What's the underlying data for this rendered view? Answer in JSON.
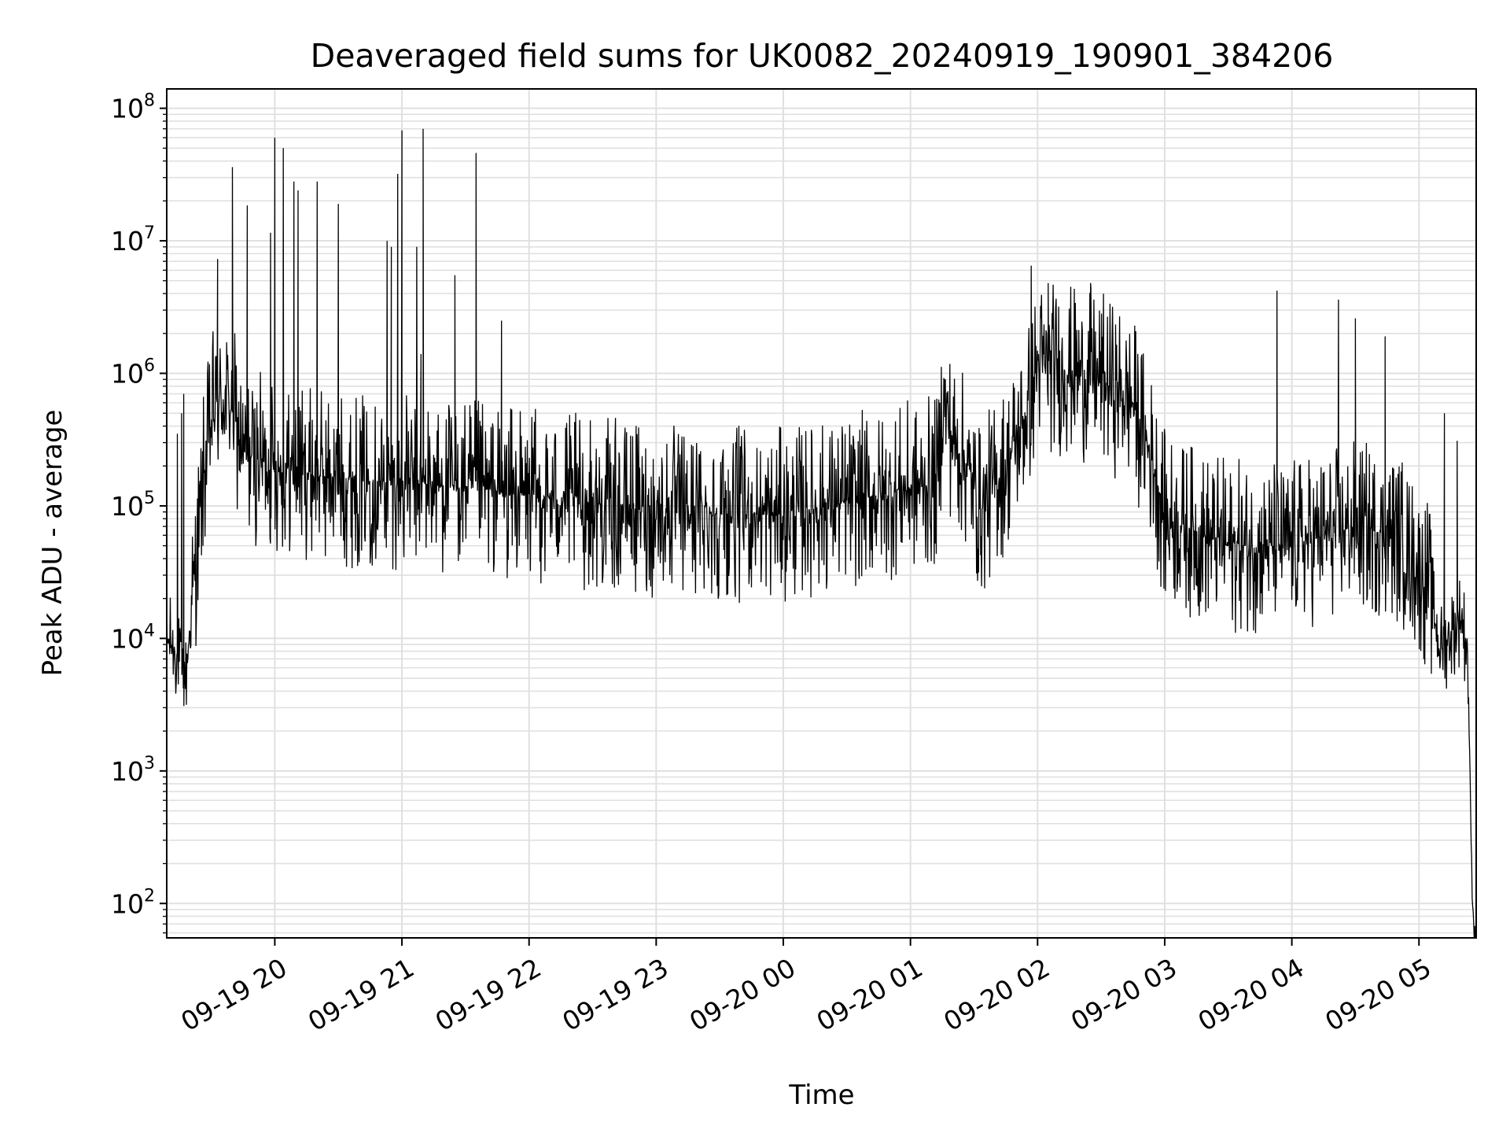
{
  "chart_data": {
    "type": "line",
    "title": "Deaveraged field sums for UK0082_20240919_190901_384206",
    "xlabel": "Time",
    "ylabel": "Peak ADU - average",
    "yscale": "log",
    "ylim": [
      55,
      140000000
    ],
    "xlim": [
      "2024-09-19 19:09:00",
      "2024-09-20 05:27:00"
    ],
    "grid": true,
    "line_color": "#000000",
    "grid_color": "#e0e0e0",
    "x_tick_labels": [
      "09-19 20",
      "09-19 21",
      "09-19 22",
      "09-19 23",
      "09-20 00",
      "09-20 01",
      "09-20 02",
      "09-20 03",
      "09-20 04",
      "09-20 05"
    ],
    "y_tick_labels": [
      {
        "base": "10",
        "exp": "2"
      },
      {
        "base": "10",
        "exp": "3"
      },
      {
        "base": "10",
        "exp": "4"
      },
      {
        "base": "10",
        "exp": "5"
      },
      {
        "base": "10",
        "exp": "6"
      },
      {
        "base": "10",
        "exp": "7"
      },
      {
        "base": "10",
        "exp": "8"
      }
    ],
    "baseline": [
      {
        "t": "2024-09-19 19:09:00",
        "y": 10000
      },
      {
        "t": "2024-09-19 19:13:00",
        "y": 8000
      },
      {
        "t": "2024-09-19 19:18:00",
        "y": 5000
      },
      {
        "t": "2024-09-19 19:22:00",
        "y": 30000
      },
      {
        "t": "2024-09-19 19:27:00",
        "y": 200000
      },
      {
        "t": "2024-09-19 19:31:00",
        "y": 500000
      },
      {
        "t": "2024-09-19 19:36:00",
        "y": 650000
      },
      {
        "t": "2024-09-19 19:40:00",
        "y": 550000
      },
      {
        "t": "2024-09-19 19:45:00",
        "y": 250000
      },
      {
        "t": "2024-09-19 20:00:00",
        "y": 200000
      },
      {
        "t": "2024-09-19 20:30:00",
        "y": 160000
      },
      {
        "t": "2024-09-19 21:00:00",
        "y": 150000
      },
      {
        "t": "2024-09-19 21:30:00",
        "y": 140000
      },
      {
        "t": "2024-09-19 22:00:00",
        "y": 120000
      },
      {
        "t": "2024-09-19 23:00:00",
        "y": 90000
      },
      {
        "t": "2024-09-20 00:00:00",
        "y": 85000
      },
      {
        "t": "2024-09-20 00:45:00",
        "y": 120000
      },
      {
        "t": "2024-09-20 01:13:00",
        "y": 150000
      },
      {
        "t": "2024-09-20 01:15:00",
        "y": 700000
      },
      {
        "t": "2024-09-20 01:20:00",
        "y": 300000
      },
      {
        "t": "2024-09-20 01:27:00",
        "y": 200000
      },
      {
        "t": "2024-09-20 01:33:00",
        "y": 90000
      },
      {
        "t": "2024-09-20 01:45:00",
        "y": 200000
      },
      {
        "t": "2024-09-20 01:55:00",
        "y": 500000
      },
      {
        "t": "2024-09-20 02:00:00",
        "y": 1200000
      },
      {
        "t": "2024-09-20 02:30:00",
        "y": 900000
      },
      {
        "t": "2024-09-20 02:45:00",
        "y": 600000
      },
      {
        "t": "2024-09-20 02:55:00",
        "y": 200000
      },
      {
        "t": "2024-09-20 03:00:00",
        "y": 80000
      },
      {
        "t": "2024-09-20 03:30:00",
        "y": 50000
      },
      {
        "t": "2024-09-20 04:00:00",
        "y": 50000
      },
      {
        "t": "2024-09-20 04:30:00",
        "y": 70000
      },
      {
        "t": "2024-09-20 04:50:00",
        "y": 60000
      },
      {
        "t": "2024-09-20 05:05:00",
        "y": 25000
      },
      {
        "t": "2024-09-20 05:10:00",
        "y": 8000
      },
      {
        "t": "2024-09-20 05:20:00",
        "y": 15000
      },
      {
        "t": "2024-09-20 05:23:00",
        "y": 8000
      },
      {
        "t": "2024-09-20 05:24:00",
        "y": 1000
      },
      {
        "t": "2024-09-20 05:25:00",
        "y": 150
      },
      {
        "t": "2024-09-20 05:26:00",
        "y": 60
      }
    ],
    "spikes": [
      {
        "t": "2024-09-19 19:14:00",
        "y": 350000
      },
      {
        "t": "2024-09-19 19:16:00",
        "y": 500000
      },
      {
        "t": "2024-09-19 19:17:00",
        "y": 700000
      },
      {
        "t": "2024-09-19 19:33:00",
        "y": 7300000
      },
      {
        "t": "2024-09-19 19:40:00",
        "y": 36000000
      },
      {
        "t": "2024-09-19 19:47:00",
        "y": 18500000
      },
      {
        "t": "2024-09-19 19:58:00",
        "y": 11500000
      },
      {
        "t": "2024-09-19 20:00:00",
        "y": 60000000
      },
      {
        "t": "2024-09-19 20:04:00",
        "y": 50000000
      },
      {
        "t": "2024-09-19 20:09:00",
        "y": 28000000
      },
      {
        "t": "2024-09-19 20:11:00",
        "y": 24000000
      },
      {
        "t": "2024-09-19 20:20:00",
        "y": 28000000
      },
      {
        "t": "2024-09-19 20:30:00",
        "y": 19000000
      },
      {
        "t": "2024-09-19 20:53:00",
        "y": 10000000
      },
      {
        "t": "2024-09-19 20:55:00",
        "y": 9000000
      },
      {
        "t": "2024-09-19 20:58:00",
        "y": 32000000
      },
      {
        "t": "2024-09-19 21:00:00",
        "y": 68000000
      },
      {
        "t": "2024-09-19 21:07:00",
        "y": 9000000
      },
      {
        "t": "2024-09-19 21:09:00",
        "y": 1400000
      },
      {
        "t": "2024-09-19 21:10:00",
        "y": 70000000
      },
      {
        "t": "2024-09-19 21:25:00",
        "y": 5500000
      },
      {
        "t": "2024-09-19 21:35:00",
        "y": 46000000
      },
      {
        "t": "2024-09-19 21:47:00",
        "y": 2500000
      },
      {
        "t": "2024-09-20 01:57:00",
        "y": 6500000
      },
      {
        "t": "2024-09-20 02:05:00",
        "y": 4800000
      },
      {
        "t": "2024-09-20 02:25:00",
        "y": 4800000
      },
      {
        "t": "2024-09-20 03:53:00",
        "y": 4200000
      },
      {
        "t": "2024-09-20 04:22:00",
        "y": 3600000
      },
      {
        "t": "2024-09-20 04:30:00",
        "y": 2600000
      },
      {
        "t": "2024-09-20 04:44:00",
        "y": 1900000
      },
      {
        "t": "2024-09-20 05:12:00",
        "y": 500000
      },
      {
        "t": "2024-09-20 05:18:00",
        "y": 310000
      }
    ]
  }
}
